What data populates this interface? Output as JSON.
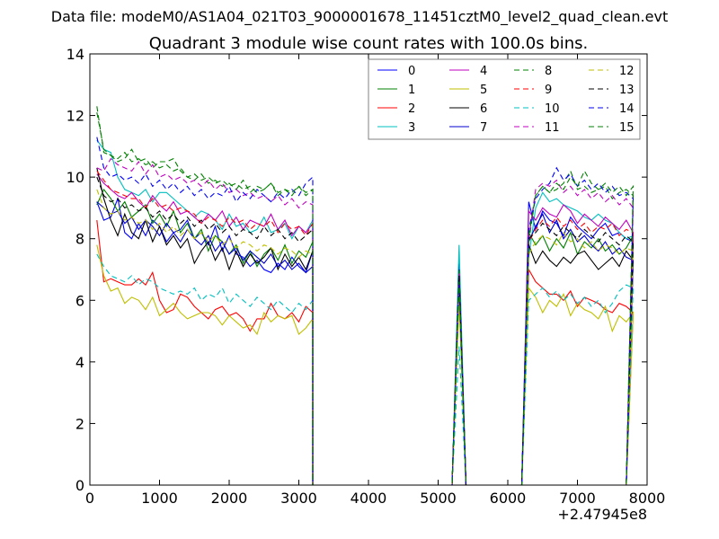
{
  "chart_data": {
    "type": "line",
    "suptitle": "Data file: modeM0/AS1A04_021T03_9000001678_11451cztM0_level2_quad_clean.evt",
    "title": "Quadrant 3 module wise count rates with 100.0s bins.",
    "xlabel": "",
    "ylabel": "",
    "offset_text": "+2.47945e8",
    "xlim": [
      0,
      8000
    ],
    "ylim": [
      0,
      14
    ],
    "xticks": [
      0,
      1000,
      2000,
      3000,
      4000,
      5000,
      6000,
      7000,
      8000
    ],
    "yticks": [
      0,
      2,
      4,
      6,
      8,
      10,
      12,
      14
    ],
    "grid": false,
    "legend_position": "top-right",
    "legend_columns": 4,
    "series": [
      {
        "name": "0",
        "color": "#0000ff",
        "dashed": false,
        "v": [
          9.2,
          8.6,
          8.7,
          9.3,
          8.2,
          8.0,
          8.5,
          8.1,
          8.6,
          8.4,
          7.9,
          8.2,
          8.3,
          8.6,
          8.0,
          8.2,
          7.8,
          8.4,
          7.6,
          8.1,
          7.5,
          7.4,
          7.1,
          7.3,
          7.0,
          6.9,
          7.2,
          7.0,
          7.4,
          7.1,
          6.9,
          7.6
        ],
        "s1": 7.2,
        "s2": 9.2,
        "c": [
          8.3,
          8.9,
          8.6,
          8.5,
          8.1,
          8.7,
          8.4,
          8.2,
          8.0,
          8.3,
          8.5,
          8.1,
          8.2,
          8.0,
          7.9
        ]
      },
      {
        "name": "1",
        "color": "#008000",
        "dashed": false,
        "v": [
          9.1,
          9.6,
          9.3,
          8.9,
          9.2,
          8.7,
          8.9,
          9.1,
          8.5,
          8.8,
          8.4,
          8.9,
          8.2,
          8.5,
          8.0,
          8.3,
          7.6,
          8.1,
          7.9,
          7.5,
          7.8,
          7.2,
          7.6,
          7.1,
          7.5,
          7.7,
          7.3,
          7.8,
          7.2,
          7.6,
          7.4,
          7.9
        ],
        "s1": 6.9,
        "s2": 8.2,
        "c": [
          7.8,
          8.1,
          7.6,
          8.0,
          7.7,
          8.2,
          7.5,
          7.9,
          7.7,
          8.0,
          7.6,
          7.8,
          7.5,
          7.7,
          8.1
        ]
      },
      {
        "name": "2",
        "color": "#ff0000",
        "dashed": false,
        "v": [
          8.6,
          6.6,
          6.7,
          6.6,
          6.5,
          6.5,
          6.7,
          6.5,
          6.9,
          6.0,
          5.6,
          5.7,
          6.2,
          6.1,
          5.8,
          5.6,
          5.4,
          5.7,
          5.8,
          5.5,
          5.6,
          5.4,
          5.0,
          5.4,
          5.4,
          5.9,
          5.5,
          5.4,
          5.6,
          5.3,
          5.8,
          5.6
        ],
        "s1": 6.3,
        "s2": 7.0,
        "c": [
          6.6,
          6.4,
          6.2,
          6.2,
          6.0,
          6.3,
          5.8,
          6.1,
          6.0,
          5.9,
          5.7,
          5.6,
          5.9,
          5.8,
          5.6
        ]
      },
      {
        "name": "3",
        "color": "#00bfbf",
        "dashed": false,
        "v": [
          11.2,
          10.9,
          10.8,
          10.0,
          9.6,
          9.5,
          9.4,
          9.6,
          9.2,
          9.5,
          9.5,
          9.3,
          9.1,
          8.9,
          8.7,
          8.9,
          8.8,
          8.6,
          8.3,
          8.8,
          8.4,
          8.5,
          8.2,
          8.3,
          8.7,
          8.2,
          8.3,
          8.5,
          8.0,
          8.4,
          8.2,
          8.6
        ],
        "s1": 7.8,
        "s2": 7.4,
        "c": [
          9.0,
          9.5,
          9.2,
          9.3,
          9.1,
          9.0,
          8.9,
          8.7,
          8.6,
          8.8,
          8.6,
          8.5,
          8.2,
          8.0,
          8.1
        ]
      },
      {
        "name": "4",
        "color": "#bf00bf",
        "dashed": false,
        "v": [
          10.1,
          9.8,
          9.6,
          9.4,
          9.3,
          9.5,
          9.2,
          9.0,
          9.4,
          9.1,
          8.9,
          9.2,
          8.8,
          8.9,
          8.7,
          8.5,
          8.8,
          8.6,
          8.9,
          8.4,
          8.7,
          8.3,
          8.6,
          8.5,
          8.4,
          8.8,
          8.3,
          8.6,
          8.1,
          8.4,
          8.2,
          8.5
        ],
        "s1": 6.8,
        "s2": 8.9,
        "c": [
          8.6,
          9.0,
          8.8,
          8.7,
          9.1,
          8.9,
          8.5,
          8.8,
          8.6,
          8.4,
          8.7,
          8.5,
          8.3,
          8.6,
          8.2
        ]
      },
      {
        "name": "5",
        "color": "#bfbf00",
        "dashed": false,
        "v": [
          7.8,
          6.8,
          6.3,
          6.4,
          5.9,
          6.1,
          6.0,
          5.7,
          6.1,
          5.5,
          5.7,
          5.9,
          5.6,
          5.4,
          5.5,
          5.6,
          5.6,
          5.5,
          5.2,
          5.5,
          5.3,
          5.1,
          5.2,
          4.9,
          5.6,
          5.3,
          5.5,
          5.4,
          5.5,
          4.9,
          5.1,
          5.4
        ],
        "s1": 5.9,
        "s2": 6.4,
        "c": [
          6.1,
          5.6,
          6.0,
          5.8,
          6.2,
          5.5,
          5.9,
          5.7,
          5.6,
          5.4,
          5.8,
          5.0,
          5.5,
          5.3,
          5.6
        ]
      },
      {
        "name": "6",
        "color": "#000000",
        "dashed": false,
        "v": [
          10.3,
          9.3,
          8.6,
          8.1,
          8.8,
          8.2,
          8.0,
          8.6,
          7.9,
          8.4,
          7.8,
          8.1,
          7.7,
          8.0,
          7.2,
          7.6,
          7.9,
          7.3,
          7.7,
          7.0,
          7.6,
          7.1,
          7.5,
          7.2,
          7.4,
          7.7,
          7.0,
          7.5,
          7.1,
          7.4,
          7.0,
          7.6
        ],
        "s1": 7.0,
        "s2": 7.8,
        "c": [
          7.2,
          7.6,
          7.3,
          7.1,
          7.4,
          7.2,
          7.5,
          7.6,
          7.3,
          7.0,
          7.2,
          7.4,
          7.1,
          7.6,
          7.3
        ]
      },
      {
        "name": "7",
        "color": "#0000cc",
        "dashed": false,
        "v": [
          9.2,
          9.0,
          8.8,
          8.9,
          8.5,
          8.7,
          8.3,
          8.6,
          8.4,
          8.1,
          8.5,
          8.2,
          7.9,
          8.3,
          8.0,
          7.8,
          8.1,
          7.6,
          7.9,
          7.5,
          7.7,
          7.3,
          7.6,
          7.4,
          7.2,
          7.5,
          7.1,
          7.3,
          7.0,
          7.2,
          6.9,
          7.1
        ],
        "s1": 7.0,
        "s2": 7.9,
        "c": [
          8.4,
          8.8,
          8.2,
          8.6,
          8.0,
          8.3,
          7.9,
          8.1,
          7.8,
          7.6,
          7.9,
          7.5,
          7.7,
          7.4,
          7.3
        ]
      },
      {
        "name": "8",
        "color": "#008000",
        "dashed": true,
        "v": [
          12.3,
          10.8,
          10.7,
          10.5,
          10.6,
          10.9,
          10.5,
          10.6,
          10.3,
          10.5,
          10.5,
          10.6,
          10.2,
          10.0,
          9.9,
          10.1,
          9.8,
          9.9,
          9.7,
          9.8,
          9.6,
          9.9,
          9.5,
          9.7,
          9.6,
          9.8,
          9.5,
          9.6,
          9.4,
          9.7,
          9.5,
          9.6
        ],
        "s1": 7.0,
        "s2": 7.9,
        "c": [
          9.4,
          9.7,
          9.5,
          9.6,
          9.8,
          10.2,
          9.6,
          9.7,
          9.5,
          9.6,
          9.7,
          9.3,
          9.5,
          9.6,
          9.4
        ]
      },
      {
        "name": "9",
        "color": "#ff0000",
        "dashed": true,
        "v": [
          10.2,
          9.9,
          9.6,
          9.5,
          9.4,
          9.3,
          9.3,
          9.0,
          9.3,
          9.0,
          9.1,
          8.9,
          9.0,
          8.9,
          8.8,
          8.5,
          8.7,
          8.6,
          8.4,
          8.7,
          8.5,
          8.6,
          8.3,
          8.5,
          8.4,
          8.6,
          8.2,
          8.5,
          8.3,
          8.4,
          8.1,
          8.5
        ],
        "s1": 6.9,
        "s2": 7.9,
        "c": [
          8.3,
          8.6,
          8.4,
          8.7,
          8.4,
          8.6,
          8.3,
          8.5,
          8.2,
          8.4,
          8.3,
          8.5,
          8.1,
          8.3,
          8.2
        ]
      },
      {
        "name": "10",
        "color": "#00bfbf",
        "dashed": true,
        "v": [
          7.5,
          7.1,
          6.8,
          6.7,
          6.6,
          6.8,
          6.5,
          6.7,
          6.6,
          6.4,
          6.3,
          6.2,
          6.3,
          6.2,
          6.4,
          6.0,
          6.2,
          6.1,
          6.4,
          5.9,
          6.2,
          6.0,
          5.8,
          6.1,
          5.9,
          5.7,
          6.0,
          5.8,
          5.6,
          5.9,
          5.7,
          6.0
        ],
        "s1": 4.5,
        "s2": 6.0,
        "c": [
          6.2,
          6.4,
          6.1,
          6.3,
          6.0,
          6.2,
          5.9,
          6.1,
          5.8,
          6.0,
          5.6,
          5.9,
          6.3,
          6.5,
          6.4
        ]
      },
      {
        "name": "11",
        "color": "#bf00bf",
        "dashed": true,
        "v": [
          10.3,
          10.2,
          10.6,
          10.4,
          10.3,
          10.2,
          10.5,
          10.1,
          10.4,
          10.0,
          10.1,
          9.9,
          10.0,
          9.8,
          9.9,
          9.7,
          9.9,
          9.6,
          9.8,
          9.5,
          9.6,
          9.4,
          9.5,
          9.3,
          9.4,
          9.2,
          9.4,
          9.1,
          9.3,
          9.0,
          9.2,
          9.1
        ],
        "s1": 6.9,
        "s2": 8.0,
        "c": [
          9.6,
          9.8,
          9.7,
          9.9,
          9.5,
          9.7,
          9.4,
          9.6,
          9.3,
          9.5,
          9.2,
          9.4,
          9.1,
          9.3,
          9.0
        ]
      },
      {
        "name": "12",
        "color": "#bfbf00",
        "dashed": true,
        "v": [
          9.6,
          9.0,
          8.8,
          8.9,
          8.6,
          8.7,
          8.5,
          8.6,
          8.3,
          8.5,
          8.2,
          8.4,
          8.1,
          8.3,
          8.0,
          8.2,
          7.9,
          8.1,
          7.8,
          8.0,
          7.7,
          7.9,
          7.8,
          7.6,
          7.8,
          7.7,
          7.5,
          7.7,
          7.6,
          7.4,
          7.6,
          7.5
        ],
        "s1": 6.4,
        "s2": 7.5,
        "c": [
          7.9,
          8.1,
          8.0,
          7.8,
          8.2,
          7.9,
          8.0,
          7.7,
          7.9,
          7.6,
          7.8,
          7.7,
          7.5,
          7.7,
          7.6
        ]
      },
      {
        "name": "13",
        "color": "#000000",
        "dashed": true,
        "v": [
          10.0,
          9.4,
          9.2,
          9.3,
          9.0,
          9.1,
          8.9,
          9.0,
          8.7,
          8.9,
          8.6,
          8.8,
          8.5,
          8.7,
          8.4,
          8.6,
          8.3,
          8.5,
          8.2,
          8.4,
          8.1,
          8.3,
          8.2,
          8.0,
          8.4,
          8.1,
          8.3,
          8.0,
          8.2,
          7.9,
          8.1,
          8.3
        ],
        "s1": 6.8,
        "s2": 8.0,
        "c": [
          8.2,
          8.5,
          8.3,
          8.1,
          8.4,
          8.2,
          8.0,
          8.3,
          8.1,
          7.9,
          8.2,
          8.0,
          7.8,
          8.1,
          7.9
        ]
      },
      {
        "name": "14",
        "color": "#0000ff",
        "dashed": true,
        "v": [
          11.3,
          10.3,
          10.0,
          10.1,
          9.9,
          10.0,
          9.8,
          10.1,
          9.7,
          9.9,
          9.6,
          9.8,
          9.5,
          9.7,
          9.4,
          9.6,
          9.3,
          9.5,
          9.4,
          9.7,
          9.2,
          9.5,
          9.3,
          9.6,
          9.4,
          9.2,
          9.5,
          9.3,
          9.6,
          9.4,
          9.8,
          10.0
        ],
        "s1": 6.6,
        "s2": 8.3,
        "c": [
          9.3,
          9.6,
          9.8,
          10.3,
          9.9,
          10.1,
          9.7,
          9.9,
          9.6,
          9.8,
          9.5,
          9.7,
          9.4,
          9.5,
          9.3
        ]
      },
      {
        "name": "15",
        "color": "#008000",
        "dashed": true,
        "v": [
          12.1,
          10.9,
          10.7,
          10.6,
          10.8,
          10.5,
          10.6,
          10.4,
          10.5,
          10.3,
          10.4,
          10.2,
          10.3,
          10.0,
          10.1,
          9.9,
          10.0,
          9.8,
          9.9,
          9.7,
          9.8,
          9.6,
          9.7,
          9.5,
          9.6,
          9.8,
          9.4,
          9.6,
          9.5,
          9.7,
          9.4,
          9.6
        ],
        "s1": 6.6,
        "s2": 8.1,
        "c": [
          9.4,
          9.7,
          9.5,
          9.8,
          9.6,
          10.0,
          9.7,
          10.2,
          9.8,
          9.6,
          9.8,
          9.5,
          9.7,
          9.4,
          9.7
        ]
      }
    ]
  }
}
